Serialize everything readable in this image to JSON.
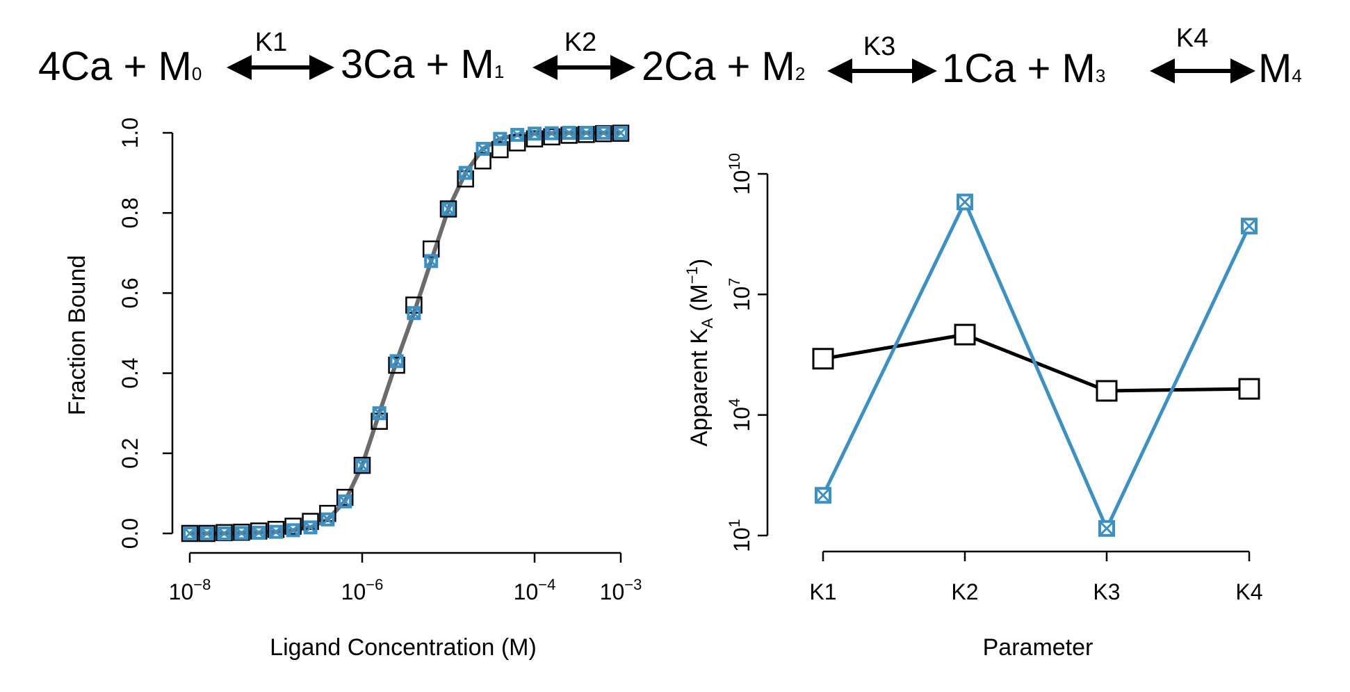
{
  "scheme": {
    "species": [
      {
        "coef": "4Ca",
        "plus": "+",
        "base": "M",
        "sub": "0"
      },
      {
        "coef": "3Ca",
        "plus": "+",
        "base": "M",
        "sub": "1"
      },
      {
        "coef": "2Ca",
        "plus": "+",
        "base": "M",
        "sub": "2"
      },
      {
        "coef": "1Ca",
        "plus": "+",
        "base": "M",
        "sub": "3"
      },
      {
        "coef": "",
        "plus": "",
        "base": "M",
        "sub": "4"
      }
    ],
    "arrows": [
      "K1",
      "K2",
      "K3",
      "K4"
    ]
  },
  "colors": {
    "black_series": "#000000",
    "blue_series": "#3a91c5",
    "fit_line": "#6b6b6b"
  },
  "chart_data": [
    {
      "type": "scatter",
      "title": "",
      "xlabel": "Ligand Concentration (M)",
      "ylabel": "Fraction Bound",
      "x_scale": "log10",
      "xlim": [
        1e-08,
        0.001
      ],
      "ylim": [
        0.0,
        1.0
      ],
      "x_ticks": [
        {
          "base": "10",
          "exp": "−8"
        },
        {
          "base": "10",
          "exp": "−6"
        },
        {
          "base": "10",
          "exp": "−4"
        },
        {
          "base": "10",
          "exp": "−3"
        }
      ],
      "x_tick_values": [
        1e-08,
        1e-06,
        0.0001,
        0.001
      ],
      "y_ticks": [
        "0.0",
        "0.2",
        "0.4",
        "0.6",
        "0.8",
        "1.0"
      ],
      "y_tick_values": [
        0.0,
        0.2,
        0.4,
        0.6,
        0.8,
        1.0
      ],
      "grid": false,
      "x": [
        1e-08,
        1.58e-08,
        2.51e-08,
        3.98e-08,
        6.31e-08,
        1e-07,
        1.58e-07,
        2.51e-07,
        3.98e-07,
        6.31e-07,
        1e-06,
        1.58e-06,
        2.51e-06,
        3.98e-06,
        6.31e-06,
        1e-05,
        1.58e-05,
        2.51e-05,
        3.98e-05,
        6.31e-05,
        0.0001,
        0.000158,
        0.000251,
        0.000398,
        0.000631,
        0.001
      ],
      "series": [
        {
          "marker": "open-square",
          "values": [
            0.0,
            0.0,
            0.002,
            0.003,
            0.006,
            0.01,
            0.018,
            0.03,
            0.05,
            0.09,
            0.17,
            0.28,
            0.42,
            0.57,
            0.71,
            0.81,
            0.885,
            0.93,
            0.958,
            0.975,
            0.985,
            0.99,
            0.994,
            0.996,
            0.998,
            0.999
          ]
        },
        {
          "marker": "square-x",
          "values": [
            0.0,
            0.0,
            0.0,
            0.001,
            0.002,
            0.004,
            0.008,
            0.015,
            0.035,
            0.08,
            0.17,
            0.3,
            0.43,
            0.55,
            0.68,
            0.81,
            0.9,
            0.96,
            0.985,
            0.995,
            0.998,
            0.999,
            1.0,
            1.0,
            1.0,
            1.0
          ]
        }
      ]
    },
    {
      "type": "line",
      "title": "",
      "xlabel": "Parameter",
      "ylabel_main": "Apparent K",
      "ylabel_sub": "A",
      "ylabel_unit_open": " (M",
      "ylabel_unit_exp": "−1",
      "ylabel_unit_close": ")",
      "y_scale": "log10",
      "ylim": [
        10,
        10000000000.0
      ],
      "categories": [
        "K1",
        "K2",
        "K3",
        "K4"
      ],
      "y_ticks": [
        {
          "base": "10",
          "exp": "1"
        },
        {
          "base": "10",
          "exp": "4"
        },
        {
          "base": "10",
          "exp": "7"
        },
        {
          "base": "10",
          "exp": "10"
        }
      ],
      "y_tick_values": [
        10,
        10000,
        10000000,
        10000000000
      ],
      "grid": false,
      "series": [
        {
          "marker": "open-square",
          "values": [
            251189,
            1000000,
            39811,
            44668
          ]
        },
        {
          "marker": "square-x",
          "values": [
            100,
            2000000000,
            15,
            501187234
          ]
        }
      ]
    }
  ]
}
